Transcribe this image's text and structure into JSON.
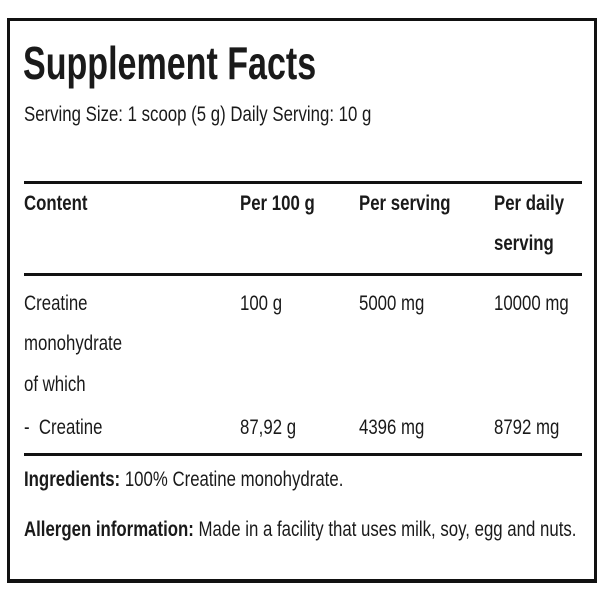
{
  "title": "Supplement Facts",
  "serving_info": "Serving Size: 1 scoop (5 g) Daily Serving: 10 g",
  "table": {
    "headers": [
      "Content",
      "Per 100 g",
      "Per serving",
      "Per daily",
      "serving"
    ],
    "rows": [
      {
        "name": [
          "Creatine",
          "monohydrate",
          "of which"
        ],
        "per_100g": "100 g",
        "per_serving": "5000 mg",
        "per_daily": "10000 mg"
      },
      {
        "name": [
          "-  Creatine"
        ],
        "per_100g": "87,92 g",
        "per_serving": "4396 mg",
        "per_daily": "8792 mg"
      }
    ]
  },
  "ingredients": {
    "label": "Ingredients:",
    "text": "100% Creatine monohydrate."
  },
  "allergen": {
    "label": "Allergen information:",
    "text": "Made in a facility that uses milk, soy, egg and nuts."
  }
}
